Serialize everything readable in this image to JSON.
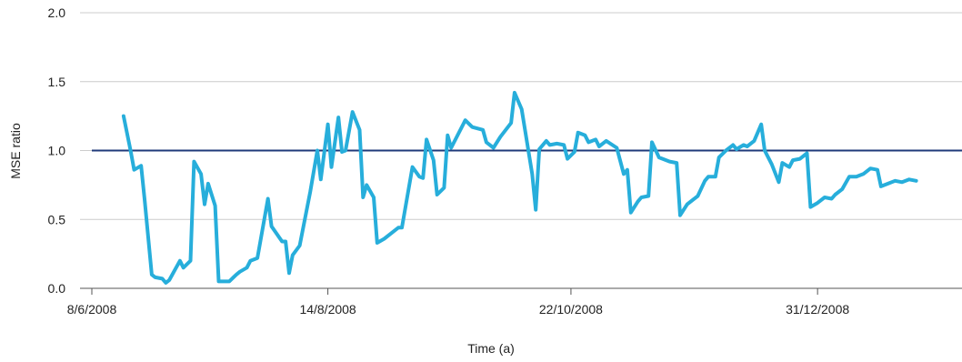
{
  "chart_data": {
    "type": "line",
    "xlabel": "Time (a)",
    "ylabel": "MSE ratio",
    "ylim": [
      0.0,
      2.0
    ],
    "yticks": [
      "0.0",
      "0.5",
      "1.0",
      "1.5",
      "2.0"
    ],
    "xlim": [
      "2008-06-08",
      "2009-02-10"
    ],
    "xticks": [
      {
        "date": "2008-06-08",
        "label": "8/6/2008"
      },
      {
        "date": "2008-08-14",
        "label": "14/8/2008"
      },
      {
        "date": "2008-10-22",
        "label": "22/10/2008"
      },
      {
        "date": "2008-12-31",
        "label": "31/12/2008"
      }
    ],
    "grid": "horizontal",
    "reference_line": {
      "y": 1.0,
      "color": "#1f3a7a"
    },
    "series": [
      {
        "color": "#27aedb",
        "points": [
          [
            "2008-06-17",
            1.25
          ],
          [
            "2008-06-19",
            1.0
          ],
          [
            "2008-06-20",
            0.86
          ],
          [
            "2008-06-22",
            0.89
          ],
          [
            "2008-06-23",
            0.64
          ],
          [
            "2008-06-25",
            0.1
          ],
          [
            "2008-06-26",
            0.08
          ],
          [
            "2008-06-28",
            0.07
          ],
          [
            "2008-06-29",
            0.04
          ],
          [
            "2008-06-30",
            0.06
          ],
          [
            "2008-07-03",
            0.2
          ],
          [
            "2008-07-04",
            0.15
          ],
          [
            "2008-07-06",
            0.2
          ],
          [
            "2008-07-07",
            0.92
          ],
          [
            "2008-07-09",
            0.83
          ],
          [
            "2008-07-10",
            0.61
          ],
          [
            "2008-07-11",
            0.76
          ],
          [
            "2008-07-13",
            0.6
          ],
          [
            "2008-07-14",
            0.05
          ],
          [
            "2008-07-16",
            0.05
          ],
          [
            "2008-07-17",
            0.05
          ],
          [
            "2008-07-19",
            0.1
          ],
          [
            "2008-07-20",
            0.12
          ],
          [
            "2008-07-22",
            0.15
          ],
          [
            "2008-07-23",
            0.2
          ],
          [
            "2008-07-25",
            0.22
          ],
          [
            "2008-07-28",
            0.65
          ],
          [
            "2008-07-29",
            0.45
          ],
          [
            "2008-08-01",
            0.34
          ],
          [
            "2008-08-02",
            0.34
          ],
          [
            "2008-08-03",
            0.11
          ],
          [
            "2008-08-04",
            0.24
          ],
          [
            "2008-08-06",
            0.31
          ],
          [
            "2008-08-09",
            0.7
          ],
          [
            "2008-08-11",
            1.0
          ],
          [
            "2008-08-12",
            0.79
          ],
          [
            "2008-08-14",
            1.19
          ],
          [
            "2008-08-15",
            0.88
          ],
          [
            "2008-08-17",
            1.24
          ],
          [
            "2008-08-18",
            0.99
          ],
          [
            "2008-08-19",
            1.0
          ],
          [
            "2008-08-21",
            1.28
          ],
          [
            "2008-08-23",
            1.15
          ],
          [
            "2008-08-24",
            0.66
          ],
          [
            "2008-08-25",
            0.75
          ],
          [
            "2008-08-27",
            0.66
          ],
          [
            "2008-08-28",
            0.33
          ],
          [
            "2008-08-30",
            0.36
          ],
          [
            "2008-09-01",
            0.4
          ],
          [
            "2008-09-03",
            0.44
          ],
          [
            "2008-09-04",
            0.44
          ],
          [
            "2008-09-07",
            0.88
          ],
          [
            "2008-09-09",
            0.81
          ],
          [
            "2008-09-10",
            0.8
          ],
          [
            "2008-09-11",
            1.08
          ],
          [
            "2008-09-13",
            0.93
          ],
          [
            "2008-09-14",
            0.68
          ],
          [
            "2008-09-16",
            0.73
          ],
          [
            "2008-09-17",
            1.11
          ],
          [
            "2008-09-18",
            1.02
          ],
          [
            "2008-09-22",
            1.22
          ],
          [
            "2008-09-24",
            1.17
          ],
          [
            "2008-09-27",
            1.15
          ],
          [
            "2008-09-28",
            1.06
          ],
          [
            "2008-09-30",
            1.02
          ],
          [
            "2008-10-02",
            1.1
          ],
          [
            "2008-10-05",
            1.2
          ],
          [
            "2008-10-06",
            1.42
          ],
          [
            "2008-10-08",
            1.3
          ],
          [
            "2008-10-11",
            0.83
          ],
          [
            "2008-10-12",
            0.57
          ],
          [
            "2008-10-13",
            1.01
          ],
          [
            "2008-10-15",
            1.07
          ],
          [
            "2008-10-16",
            1.04
          ],
          [
            "2008-10-18",
            1.05
          ],
          [
            "2008-10-20",
            1.04
          ],
          [
            "2008-10-21",
            0.94
          ],
          [
            "2008-10-23",
            0.99
          ],
          [
            "2008-10-24",
            1.13
          ],
          [
            "2008-10-26",
            1.11
          ],
          [
            "2008-10-27",
            1.06
          ],
          [
            "2008-10-29",
            1.08
          ],
          [
            "2008-10-30",
            1.03
          ],
          [
            "2008-11-01",
            1.07
          ],
          [
            "2008-11-04",
            1.02
          ],
          [
            "2008-11-06",
            0.83
          ],
          [
            "2008-11-07",
            0.86
          ],
          [
            "2008-11-08",
            0.55
          ],
          [
            "2008-11-10",
            0.63
          ],
          [
            "2008-11-11",
            0.66
          ],
          [
            "2008-11-13",
            0.67
          ],
          [
            "2008-11-14",
            1.06
          ],
          [
            "2008-11-16",
            0.95
          ],
          [
            "2008-11-19",
            0.92
          ],
          [
            "2008-11-21",
            0.91
          ],
          [
            "2008-11-22",
            0.53
          ],
          [
            "2008-11-24",
            0.61
          ],
          [
            "2008-11-27",
            0.67
          ],
          [
            "2008-11-29",
            0.78
          ],
          [
            "2008-11-30",
            0.81
          ],
          [
            "2008-12-02",
            0.81
          ],
          [
            "2008-12-03",
            0.95
          ],
          [
            "2008-12-05",
            1.0
          ],
          [
            "2008-12-07",
            1.04
          ],
          [
            "2008-12-08",
            1.01
          ],
          [
            "2008-12-10",
            1.04
          ],
          [
            "2008-12-11",
            1.03
          ],
          [
            "2008-12-13",
            1.07
          ],
          [
            "2008-12-15",
            1.19
          ],
          [
            "2008-12-16",
            1.0
          ],
          [
            "2008-12-18",
            0.9
          ],
          [
            "2008-12-20",
            0.77
          ],
          [
            "2008-12-21",
            0.91
          ],
          [
            "2008-12-23",
            0.88
          ],
          [
            "2008-12-24",
            0.93
          ],
          [
            "2008-12-26",
            0.94
          ],
          [
            "2008-12-28",
            0.98
          ],
          [
            "2008-12-29",
            0.59
          ],
          [
            "2008-12-31",
            0.62
          ],
          [
            "2009-01-02",
            0.66
          ],
          [
            "2009-01-04",
            0.65
          ],
          [
            "2009-01-05",
            0.68
          ],
          [
            "2009-01-07",
            0.72
          ],
          [
            "2009-01-09",
            0.81
          ],
          [
            "2009-01-11",
            0.81
          ],
          [
            "2009-01-13",
            0.83
          ],
          [
            "2009-01-15",
            0.87
          ],
          [
            "2009-01-17",
            0.86
          ],
          [
            "2009-01-18",
            0.74
          ],
          [
            "2009-01-20",
            0.76
          ],
          [
            "2009-01-22",
            0.78
          ],
          [
            "2009-01-24",
            0.77
          ],
          [
            "2009-01-26",
            0.79
          ],
          [
            "2009-01-28",
            0.78
          ]
        ]
      }
    ]
  }
}
